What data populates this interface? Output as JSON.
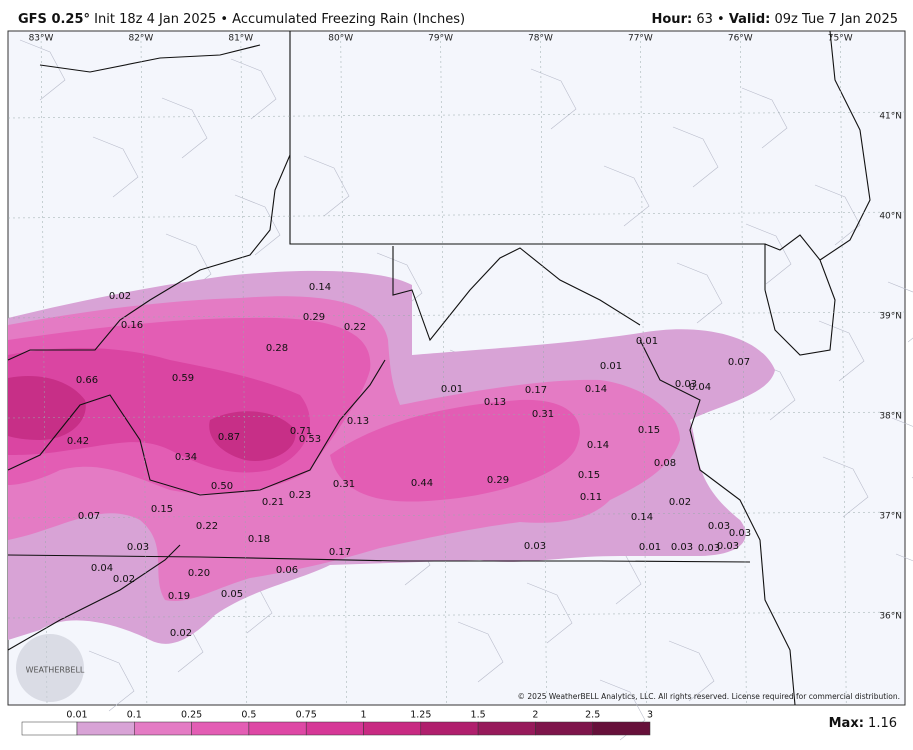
{
  "header": {
    "model": "GFS 0.25°",
    "description": "Init 18z 4 Jan 2025 • Accumulated Freezing Rain (Inches)",
    "hour_label": "Hour:",
    "hour_value": "63 •",
    "valid_label": "Valid:",
    "valid_value": "09z Tue 7 Jan 2025"
  },
  "longitudes": [
    "83°W",
    "82°W",
    "81°W",
    "80°W",
    "79°W",
    "78°W",
    "77°W",
    "76°W",
    "75°W"
  ],
  "latitudes": [
    "41°N",
    "40°N",
    "39°N",
    "38°N",
    "37°N",
    "36°N"
  ],
  "point_labels": [
    "0.02",
    "0.14",
    "0.29",
    "0.22",
    "0.16",
    "0.28",
    "0.66",
    "0.59",
    "0.01",
    "0.17",
    "0.14",
    "0.13",
    "0.31",
    "0.87",
    "0.71",
    "0.53",
    "0.13",
    "0.42",
    "0.34",
    "0.14",
    "0.15",
    "0.08",
    "0.15",
    "0.50",
    "0.31",
    "0.44",
    "0.29",
    "0.11",
    "0.21",
    "0.23",
    "0.02",
    "0.15",
    "0.07",
    "0.14",
    "0.22",
    "0.03",
    "0.03",
    "0.18",
    "0.03",
    "0.17",
    "0.03",
    "0.01",
    "0.03",
    "0.03",
    "0.03",
    "0.04",
    "0.02",
    "0.20",
    "0.06",
    "0.19",
    "0.05",
    "0.02",
    "0.01",
    "0.01",
    "0.07",
    "0.03",
    "0.04"
  ],
  "logo": "WEATHERBELL",
  "copyright": "© 2025 WeatherBELL Analytics, LLC. All rights reserved. License required for commercial distribution.",
  "colorbar": {
    "labels": [
      "0.01",
      "0.1",
      "0.25",
      "0.5",
      "0.75",
      "1",
      "1.25",
      "1.5",
      "2",
      "2.5",
      "3"
    ],
    "colors": [
      "#ffffff",
      "#d8a3d6",
      "#e47bc4",
      "#e35db4",
      "#de48a5",
      "#d63897",
      "#c82a82",
      "#b01f6d",
      "#971a5b",
      "#7e154b",
      "#66103a"
    ]
  },
  "max_label": "Max:",
  "max_value": "1.16"
}
